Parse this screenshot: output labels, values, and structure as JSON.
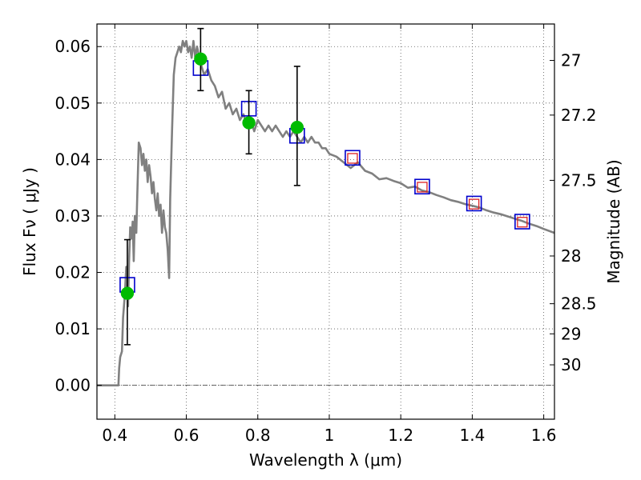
{
  "chart_data": {
    "type": "scatter",
    "xlabel": "Wavelength  λ (μm)",
    "ylabel": "Flux  Fν  ( μJy )",
    "ylabel_right": "Magnitude (AB)",
    "xlim": [
      0.35,
      1.63
    ],
    "ylim": [
      -0.006,
      0.064
    ],
    "grid": true,
    "x_ticks": [
      {
        "value": 0.4,
        "label": "0.4"
      },
      {
        "value": 0.6,
        "label": "0.6"
      },
      {
        "value": 0.8,
        "label": "0.8"
      },
      {
        "value": 1.0,
        "label": "1"
      },
      {
        "value": 1.2,
        "label": "1.2"
      },
      {
        "value": 1.4,
        "label": "1.4"
      },
      {
        "value": 1.6,
        "label": "1.6"
      }
    ],
    "y_ticks": [
      {
        "value": 0.0,
        "label": "0.00"
      },
      {
        "value": 0.01,
        "label": "0.01"
      },
      {
        "value": 0.02,
        "label": "0.02"
      },
      {
        "value": 0.03,
        "label": "0.03"
      },
      {
        "value": 0.04,
        "label": "0.04"
      },
      {
        "value": 0.05,
        "label": "0.05"
      },
      {
        "value": 0.06,
        "label": "0.06"
      }
    ],
    "right_ticks": [
      {
        "mag": 27,
        "label": "27"
      },
      {
        "mag": 27.2,
        "label": "27.2"
      },
      {
        "mag": 27.5,
        "label": "27.5"
      },
      {
        "mag": 28,
        "label": "28"
      },
      {
        "mag": 28.5,
        "label": "28.5"
      },
      {
        "mag": 29,
        "label": "29"
      },
      {
        "mag": 30,
        "label": "30"
      }
    ],
    "series": [
      {
        "kind": "model_sed_line",
        "color": "#808080",
        "points": [
          [
            0.35,
            0.0
          ],
          [
            0.41,
            0.0
          ],
          [
            0.412,
            0.003
          ],
          [
            0.415,
            0.005
          ],
          [
            0.42,
            0.006
          ],
          [
            0.423,
            0.012
          ],
          [
            0.428,
            0.016
          ],
          [
            0.432,
            0.021
          ],
          [
            0.437,
            0.014
          ],
          [
            0.44,
            0.022
          ],
          [
            0.443,
            0.028
          ],
          [
            0.447,
            0.026
          ],
          [
            0.45,
            0.029
          ],
          [
            0.453,
            0.022
          ],
          [
            0.456,
            0.03
          ],
          [
            0.46,
            0.027
          ],
          [
            0.463,
            0.034
          ],
          [
            0.467,
            0.043
          ],
          [
            0.472,
            0.042
          ],
          [
            0.476,
            0.039
          ],
          [
            0.48,
            0.041
          ],
          [
            0.484,
            0.038
          ],
          [
            0.488,
            0.04
          ],
          [
            0.492,
            0.036
          ],
          [
            0.496,
            0.039
          ],
          [
            0.5,
            0.037
          ],
          [
            0.504,
            0.034
          ],
          [
            0.508,
            0.036
          ],
          [
            0.512,
            0.033
          ],
          [
            0.516,
            0.031
          ],
          [
            0.52,
            0.034
          ],
          [
            0.524,
            0.03
          ],
          [
            0.528,
            0.032
          ],
          [
            0.532,
            0.027
          ],
          [
            0.536,
            0.031
          ],
          [
            0.54,
            0.028
          ],
          [
            0.544,
            0.027
          ],
          [
            0.548,
            0.024
          ],
          [
            0.552,
            0.019
          ],
          [
            0.555,
            0.033
          ],
          [
            0.56,
            0.045
          ],
          [
            0.565,
            0.055
          ],
          [
            0.57,
            0.058
          ],
          [
            0.575,
            0.059
          ],
          [
            0.58,
            0.06
          ],
          [
            0.585,
            0.059
          ],
          [
            0.59,
            0.061
          ],
          [
            0.595,
            0.06
          ],
          [
            0.6,
            0.061
          ],
          [
            0.605,
            0.059
          ],
          [
            0.61,
            0.06
          ],
          [
            0.615,
            0.058
          ],
          [
            0.62,
            0.061
          ],
          [
            0.625,
            0.058
          ],
          [
            0.63,
            0.06
          ],
          [
            0.64,
            0.057
          ],
          [
            0.65,
            0.055
          ],
          [
            0.66,
            0.056
          ],
          [
            0.67,
            0.054
          ],
          [
            0.68,
            0.053
          ],
          [
            0.69,
            0.051
          ],
          [
            0.7,
            0.052
          ],
          [
            0.71,
            0.049
          ],
          [
            0.72,
            0.05
          ],
          [
            0.73,
            0.048
          ],
          [
            0.74,
            0.049
          ],
          [
            0.75,
            0.047
          ],
          [
            0.76,
            0.048
          ],
          [
            0.77,
            0.046
          ],
          [
            0.78,
            0.047
          ],
          [
            0.79,
            0.045
          ],
          [
            0.8,
            0.047
          ],
          [
            0.81,
            0.046
          ],
          [
            0.82,
            0.045
          ],
          [
            0.83,
            0.046
          ],
          [
            0.84,
            0.045
          ],
          [
            0.85,
            0.046
          ],
          [
            0.86,
            0.045
          ],
          [
            0.87,
            0.044
          ],
          [
            0.88,
            0.045
          ],
          [
            0.89,
            0.044
          ],
          [
            0.9,
            0.045
          ],
          [
            0.91,
            0.044
          ],
          [
            0.92,
            0.043
          ],
          [
            0.93,
            0.044
          ],
          [
            0.94,
            0.043
          ],
          [
            0.95,
            0.044
          ],
          [
            0.96,
            0.043
          ],
          [
            0.97,
            0.043
          ],
          [
            0.98,
            0.042
          ],
          [
            0.99,
            0.042
          ],
          [
            1.0,
            0.041
          ],
          [
            1.02,
            0.0405
          ],
          [
            1.04,
            0.0395
          ],
          [
            1.06,
            0.0385
          ],
          [
            1.08,
            0.0395
          ],
          [
            1.1,
            0.038
          ],
          [
            1.12,
            0.0375
          ],
          [
            1.14,
            0.0365
          ],
          [
            1.16,
            0.0367
          ],
          [
            1.18,
            0.0362
          ],
          [
            1.2,
            0.0358
          ],
          [
            1.22,
            0.035
          ],
          [
            1.24,
            0.0352
          ],
          [
            1.26,
            0.0345
          ],
          [
            1.28,
            0.0342
          ],
          [
            1.3,
            0.0337
          ],
          [
            1.32,
            0.0333
          ],
          [
            1.34,
            0.0328
          ],
          [
            1.36,
            0.0325
          ],
          [
            1.38,
            0.0321
          ],
          [
            1.4,
            0.0318
          ],
          [
            1.42,
            0.0315
          ],
          [
            1.44,
            0.031
          ],
          [
            1.46,
            0.0306
          ],
          [
            1.48,
            0.0303
          ],
          [
            1.5,
            0.0299
          ],
          [
            1.52,
            0.0295
          ],
          [
            1.54,
            0.0291
          ],
          [
            1.56,
            0.0286
          ],
          [
            1.58,
            0.0282
          ],
          [
            1.6,
            0.0277
          ],
          [
            1.63,
            0.027
          ]
        ]
      },
      {
        "kind": "model_photometry",
        "marker": "open_square",
        "color": "#0000cc",
        "points": [
          [
            0.435,
            0.0178
          ],
          [
            0.64,
            0.0562
          ],
          [
            0.775,
            0.049
          ],
          [
            0.91,
            0.0442
          ],
          [
            1.065,
            0.0403
          ],
          [
            1.26,
            0.0352
          ],
          [
            1.405,
            0.0322
          ],
          [
            1.54,
            0.029
          ]
        ]
      },
      {
        "kind": "model_photometry_inner",
        "marker": "open_square_small",
        "color": "#dd2222",
        "points": [
          [
            1.065,
            0.0402
          ],
          [
            1.26,
            0.0351
          ],
          [
            1.405,
            0.0321
          ],
          [
            1.54,
            0.0289
          ]
        ]
      },
      {
        "kind": "observed_photometry",
        "marker": "filled_circle",
        "color": "#00bb00",
        "points": [
          {
            "x": 0.435,
            "y": 0.0163,
            "err_low": 0.0072,
            "err_high": 0.0258
          },
          {
            "x": 0.64,
            "y": 0.0578,
            "err_low": 0.0522,
            "err_high": 0.0632
          },
          {
            "x": 0.775,
            "y": 0.0465,
            "err_low": 0.041,
            "err_high": 0.0522
          },
          {
            "x": 0.91,
            "y": 0.0457,
            "err_low": 0.0354,
            "err_high": 0.0565
          }
        ]
      }
    ],
    "colors": {
      "line": "#808080",
      "square": "#0000cc",
      "inner_square": "#dd2222",
      "point": "#00bb00",
      "errorbar": "#000000",
      "grid": "#555555"
    }
  }
}
